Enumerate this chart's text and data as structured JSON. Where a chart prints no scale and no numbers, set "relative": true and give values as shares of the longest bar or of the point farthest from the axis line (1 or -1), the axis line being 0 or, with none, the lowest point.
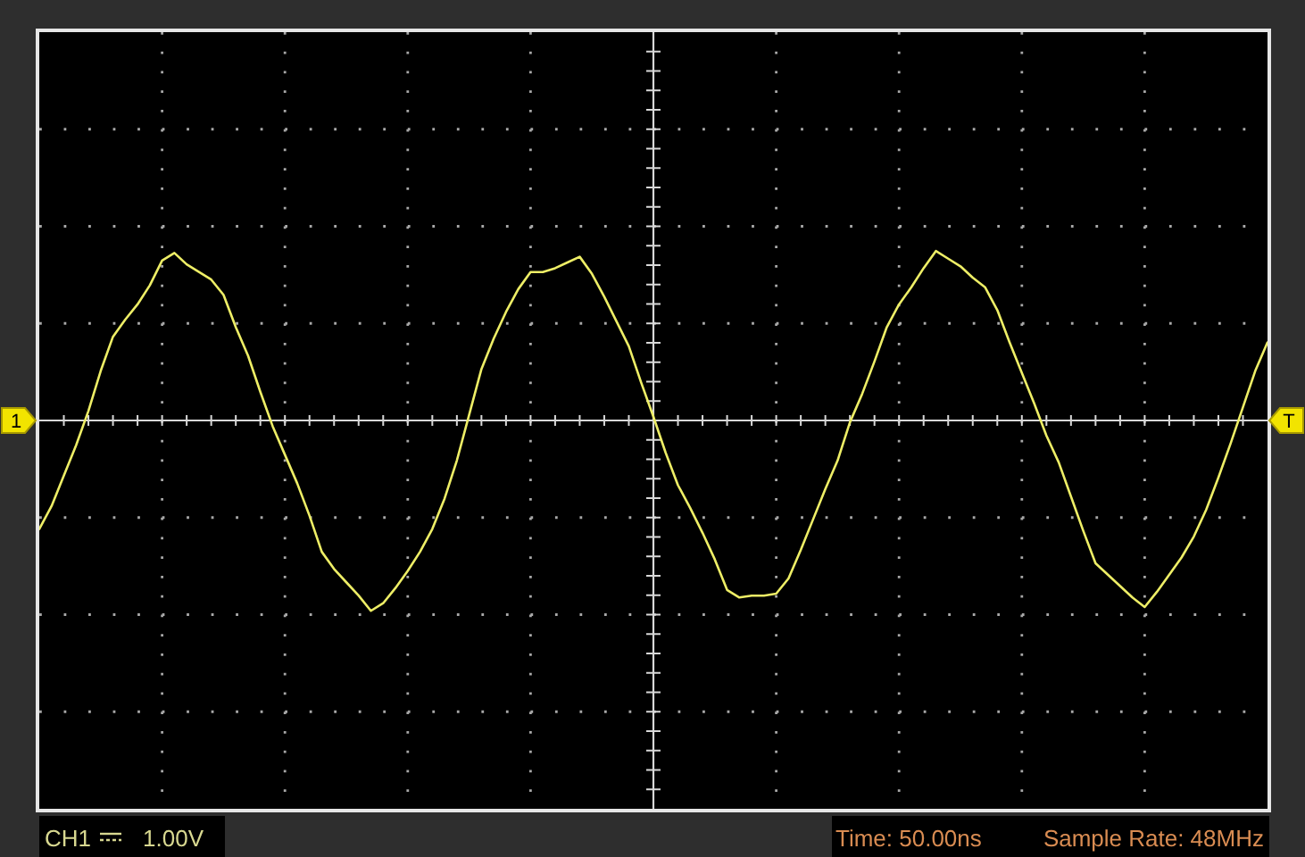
{
  "chart_data": {
    "type": "line",
    "relative": true,
    "grid": true,
    "color": "#eeee66",
    "categories": [
      null,
      null,
      null,
      null,
      null,
      null,
      null,
      null,
      null,
      null,
      null,
      null,
      null,
      null,
      null,
      null,
      null,
      null,
      null,
      null,
      null,
      null,
      null,
      null,
      null,
      null,
      null,
      null,
      null,
      null,
      null,
      null,
      null,
      null,
      null,
      null,
      null,
      null,
      null,
      null,
      null,
      null,
      null,
      null,
      null,
      null,
      null,
      null,
      null,
      null,
      null,
      null,
      null,
      null,
      null,
      null,
      null,
      null,
      null,
      null,
      null,
      null,
      null,
      null,
      null,
      null,
      null,
      null,
      null,
      null,
      null,
      null,
      null,
      null,
      null,
      null,
      null,
      null,
      null,
      null,
      null,
      null,
      null,
      null,
      null,
      null,
      null,
      null,
      null,
      null,
      null,
      null,
      null,
      null,
      null,
      null,
      null,
      null,
      null,
      null,
      null
    ],
    "values": [
      -0.57,
      -0.45,
      -0.29,
      -0.13,
      0.05,
      0.26,
      0.44,
      0.53,
      0.61,
      0.71,
      0.84,
      0.88,
      0.82,
      0.78,
      0.74,
      0.66,
      0.49,
      0.34,
      0.15,
      -0.03,
      -0.18,
      -0.33,
      -0.5,
      -0.69,
      -0.78,
      -0.85,
      -0.92,
      -1,
      -0.96,
      -0.88,
      -0.79,
      -0.69,
      -0.57,
      -0.41,
      -0.21,
      0.03,
      0.27,
      0.43,
      0.57,
      0.69,
      0.78,
      0.78,
      0.8,
      0.83,
      0.86,
      0.77,
      0.65,
      0.52,
      0.39,
      0.2,
      0.02,
      -0.17,
      -0.34,
      -0.46,
      -0.59,
      -0.73,
      -0.89,
      -0.93,
      -0.92,
      -0.92,
      -0.91,
      -0.83,
      -0.68,
      -0.52,
      -0.36,
      -0.21,
      -0.01,
      0.14,
      0.31,
      0.49,
      0.61,
      0.7,
      0.8,
      0.89,
      0.85,
      0.81,
      0.75,
      0.7,
      0.58,
      0.41,
      0.25,
      0.09,
      -0.08,
      -0.22,
      -0.4,
      -0.58,
      -0.75,
      -0.81,
      -0.87,
      -0.93,
      -0.98,
      -0.9,
      -0.81,
      -0.72,
      -0.61,
      -0.47,
      -0.3,
      -0.12,
      0.07,
      0.26,
      0.41
    ],
    "annotations": [
      {
        "text": "1",
        "y": 0
      },
      {
        "text": "T",
        "y": 0
      },
      "CH1",
      "1.00V",
      "Time: 50.00ns",
      "Sample Rate: 48MHz"
    ]
  }
}
